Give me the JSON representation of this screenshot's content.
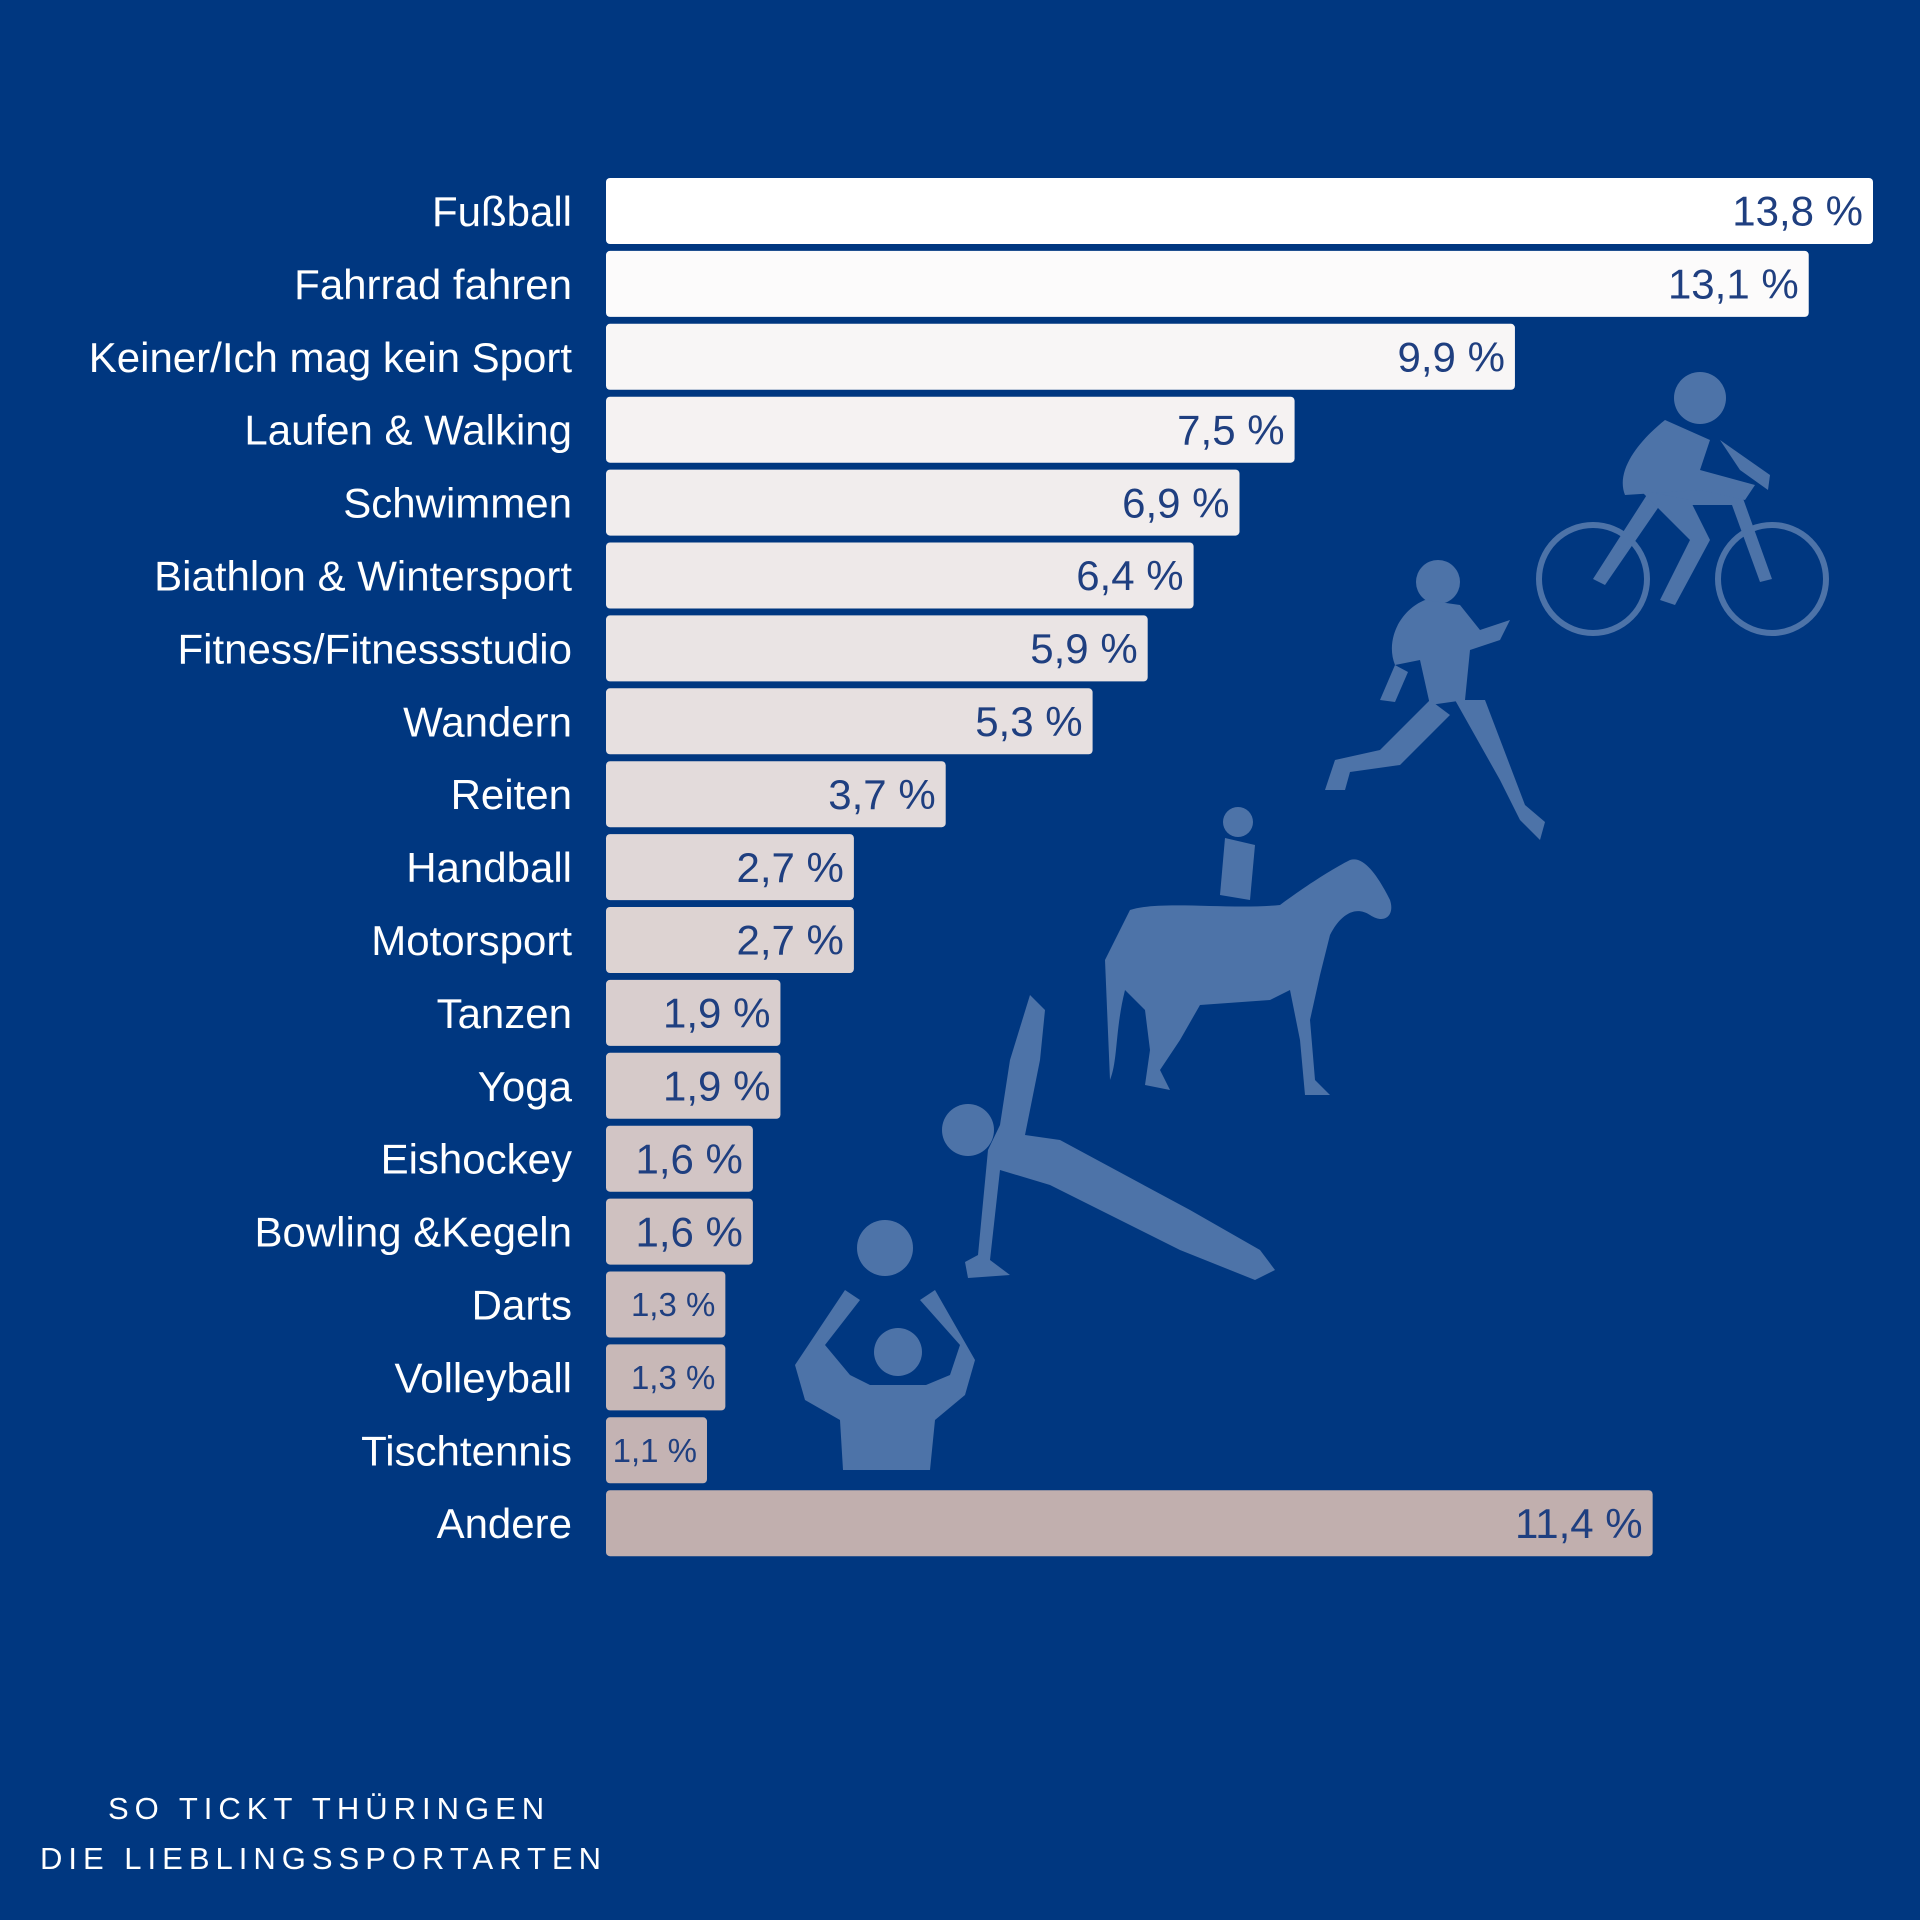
{
  "chart_data": {
    "type": "bar",
    "orientation": "horizontal",
    "categories": [
      "Fußball",
      "Fahrrad fahren",
      "Keiner/Ich mag kein Sport",
      "Laufen & Walking",
      "Schwimmen",
      "Biathlon & Wintersport",
      "Fitness/Fitnessstudio",
      "Wandern",
      "Reiten",
      "Handball",
      "Motorsport",
      "Tanzen",
      "Yoga",
      "Eishockey",
      "Bowling &Kegeln",
      "Darts",
      "Volleyball",
      "Tischtennis",
      "Andere"
    ],
    "values": [
      13.8,
      13.1,
      9.9,
      7.5,
      6.9,
      6.4,
      5.9,
      5.3,
      3.7,
      2.7,
      2.7,
      1.9,
      1.9,
      1.6,
      1.6,
      1.3,
      1.3,
      1.1,
      11.4
    ],
    "value_labels": [
      "13,8 %",
      "13,1 %",
      "9,9 %",
      "7,5 %",
      "6,9 %",
      "6,4 %",
      "5,9 %",
      "5,3 %",
      "3,7 %",
      "2,7 %",
      "2,7 %",
      "1,9 %",
      "1,9 %",
      "1,6 %",
      "1,6 %",
      "1,3 %",
      "1,3 %",
      "1,1 %",
      "11,4 %"
    ],
    "xlim": [
      0,
      13.8
    ],
    "grid": false,
    "bar_color_start": "#ffffff",
    "bar_color_end": "#c1afae"
  },
  "colors": {
    "background": "#003780",
    "value_text": "#1f3f80",
    "silhouette": "#4d73a8"
  },
  "icons": [
    "cyclist-icon",
    "runner-icon",
    "horse-rider-icon",
    "plank-icon",
    "volleyball-player-icon"
  ],
  "footer": {
    "line1": "SO TICKT THÜRINGEN",
    "line2": "DIE LIEBLINGSSPORTARTEN"
  }
}
